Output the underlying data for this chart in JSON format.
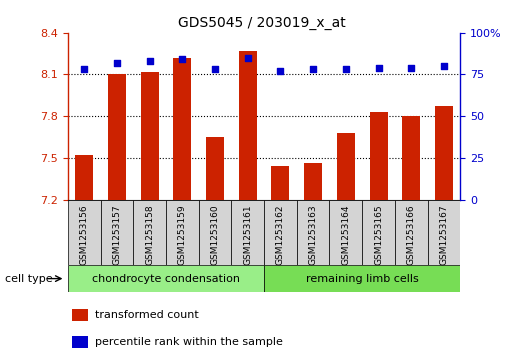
{
  "title": "GDS5045 / 203019_x_at",
  "samples": [
    "GSM1253156",
    "GSM1253157",
    "GSM1253158",
    "GSM1253159",
    "GSM1253160",
    "GSM1253161",
    "GSM1253162",
    "GSM1253163",
    "GSM1253164",
    "GSM1253165",
    "GSM1253166",
    "GSM1253167"
  ],
  "transformed_count": [
    7.52,
    8.1,
    8.12,
    8.22,
    7.65,
    8.27,
    7.44,
    7.46,
    7.68,
    7.83,
    7.8,
    7.87
  ],
  "percentile_rank": [
    78,
    82,
    83,
    84,
    78,
    85,
    77,
    78,
    78,
    79,
    79,
    80
  ],
  "ylim_left": [
    7.2,
    8.4
  ],
  "ylim_right": [
    0,
    100
  ],
  "yticks_left": [
    7.2,
    7.5,
    7.8,
    8.1,
    8.4
  ],
  "yticks_right": [
    0,
    25,
    50,
    75,
    100
  ],
  "bar_color": "#cc2200",
  "dot_color": "#0000cc",
  "bar_width": 0.55,
  "groups": [
    {
      "label": "chondrocyte condensation",
      "start": 0,
      "end": 5,
      "color": "#99ee88"
    },
    {
      "label": "remaining limb cells",
      "start": 6,
      "end": 11,
      "color": "#77dd55"
    }
  ],
  "cell_type_label": "cell type",
  "legend_items": [
    {
      "color": "#cc2200",
      "label": "transformed count"
    },
    {
      "color": "#0000cc",
      "label": "percentile rank within the sample"
    }
  ],
  "title_fontsize": 10,
  "tick_fontsize": 8,
  "sample_fontsize": 6.5,
  "group_fontsize": 8,
  "legend_fontsize": 8,
  "bg_color": "#ffffff",
  "plot_bg": "#ffffff"
}
